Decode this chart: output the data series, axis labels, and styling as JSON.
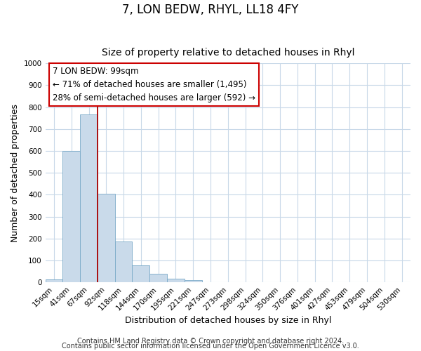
{
  "title": "7, LON BEDW, RHYL, LL18 4FY",
  "subtitle": "Size of property relative to detached houses in Rhyl",
  "xlabel": "Distribution of detached houses by size in Rhyl",
  "ylabel": "Number of detached properties",
  "bar_labels": [
    "15sqm",
    "41sqm",
    "67sqm",
    "92sqm",
    "118sqm",
    "144sqm",
    "170sqm",
    "195sqm",
    "221sqm",
    "247sqm",
    "273sqm",
    "298sqm",
    "324sqm",
    "350sqm",
    "376sqm",
    "401sqm",
    "427sqm",
    "453sqm",
    "479sqm",
    "504sqm",
    "530sqm"
  ],
  "bar_values": [
    15,
    600,
    765,
    405,
    185,
    78,
    38,
    17,
    10,
    0,
    0,
    0,
    0,
    0,
    0,
    0,
    0,
    0,
    0,
    0,
    0
  ],
  "bar_color": "#c9daea",
  "bar_edgecolor": "#7aaac8",
  "vline_color": "#aa0000",
  "vline_index": 3,
  "ylim": [
    0,
    1000
  ],
  "yticks": [
    0,
    100,
    200,
    300,
    400,
    500,
    600,
    700,
    800,
    900,
    1000
  ],
  "annotation_line1": "7 LON BEDW: 99sqm",
  "annotation_line2": "← 71% of detached houses are smaller (1,495)",
  "annotation_line3": "28% of semi-detached houses are larger (592) →",
  "footer1": "Contains HM Land Registry data © Crown copyright and database right 2024.",
  "footer2": "Contains public sector information licensed under the Open Government Licence v3.0.",
  "background_color": "#ffffff",
  "plot_bg_color": "#ffffff",
  "grid_color": "#c8d8e8",
  "title_fontsize": 12,
  "subtitle_fontsize": 10,
  "axis_label_fontsize": 9,
  "tick_fontsize": 7.5,
  "annotation_fontsize": 8.5,
  "footer_fontsize": 7
}
